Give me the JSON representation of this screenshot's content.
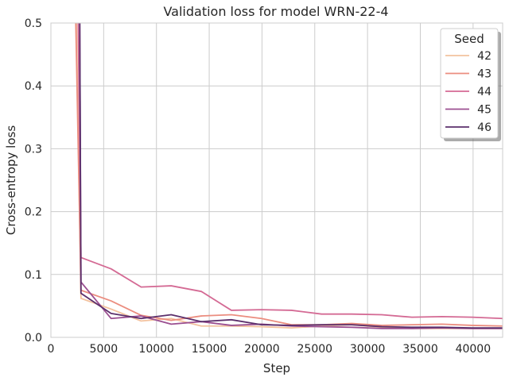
{
  "chart_data": {
    "type": "line",
    "title": "Validation loss for model WRN-22-4",
    "xlabel": "Step",
    "ylabel": "Cross-entropy loss",
    "xlim": [
      0,
      42800
    ],
    "ylim": [
      0,
      0.5
    ],
    "xticks": [
      0,
      5000,
      10000,
      15000,
      20000,
      25000,
      30000,
      35000,
      40000
    ],
    "yticks": [
      0.0,
      0.1,
      0.2,
      0.3,
      0.4,
      0.5
    ],
    "xtick_labels": [
      "0",
      "5000",
      "10000",
      "15000",
      "20000",
      "25000",
      "30000",
      "35000",
      "40000"
    ],
    "ytick_labels": [
      "0.0",
      "0.1",
      "0.2",
      "0.3",
      "0.4",
      "0.5"
    ],
    "grid": true,
    "legend": {
      "title": "Seed",
      "placement": "top-right"
    },
    "series": [
      {
        "name": "42",
        "color": "#f3c29e",
        "x": [
          2300,
          2850,
          5700,
          8550,
          11400,
          14250,
          17100,
          19950,
          22800,
          25650,
          28500,
          31350,
          34200,
          37050,
          39900,
          42800
        ],
        "y": [
          0.62,
          0.062,
          0.045,
          0.026,
          0.03,
          0.018,
          0.018,
          0.017,
          0.015,
          0.018,
          0.02,
          0.016,
          0.014,
          0.014,
          0.014,
          0.014
        ]
      },
      {
        "name": "43",
        "color": "#eb8d7f",
        "x": [
          2300,
          2850,
          5700,
          8550,
          11400,
          14250,
          17100,
          19950,
          22800,
          25650,
          28500,
          31350,
          34200,
          37050,
          39900,
          42800
        ],
        "y": [
          0.55,
          0.075,
          0.058,
          0.035,
          0.027,
          0.034,
          0.036,
          0.03,
          0.02,
          0.02,
          0.022,
          0.019,
          0.02,
          0.021,
          0.019,
          0.018
        ]
      },
      {
        "name": "44",
        "color": "#d46a94",
        "x": [
          2500,
          2850,
          5700,
          8550,
          11400,
          14250,
          17100,
          19950,
          22800,
          25650,
          28500,
          31350,
          34200,
          37050,
          39900,
          42800
        ],
        "y": [
          0.62,
          0.127,
          0.109,
          0.08,
          0.082,
          0.073,
          0.043,
          0.044,
          0.043,
          0.037,
          0.037,
          0.036,
          0.032,
          0.033,
          0.032,
          0.03
        ]
      },
      {
        "name": "45",
        "color": "#9b4f91",
        "x": [
          2700,
          2850,
          5700,
          8550,
          11400,
          14250,
          17100,
          19950,
          22800,
          25650,
          28500,
          31350,
          34200,
          37050,
          39900,
          42800
        ],
        "y": [
          0.62,
          0.088,
          0.03,
          0.034,
          0.021,
          0.025,
          0.019,
          0.021,
          0.018,
          0.017,
          0.016,
          0.014,
          0.014,
          0.015,
          0.014,
          0.014
        ]
      },
      {
        "name": "46",
        "color": "#5b2f6b",
        "x": [
          2700,
          2850,
          5700,
          8550,
          11400,
          14250,
          17100,
          19950,
          22800,
          25650,
          28500,
          31350,
          34200,
          37050,
          39900,
          42800
        ],
        "y": [
          0.62,
          0.07,
          0.038,
          0.03,
          0.036,
          0.025,
          0.028,
          0.02,
          0.019,
          0.02,
          0.02,
          0.017,
          0.016,
          0.016,
          0.015,
          0.015
        ]
      }
    ]
  }
}
